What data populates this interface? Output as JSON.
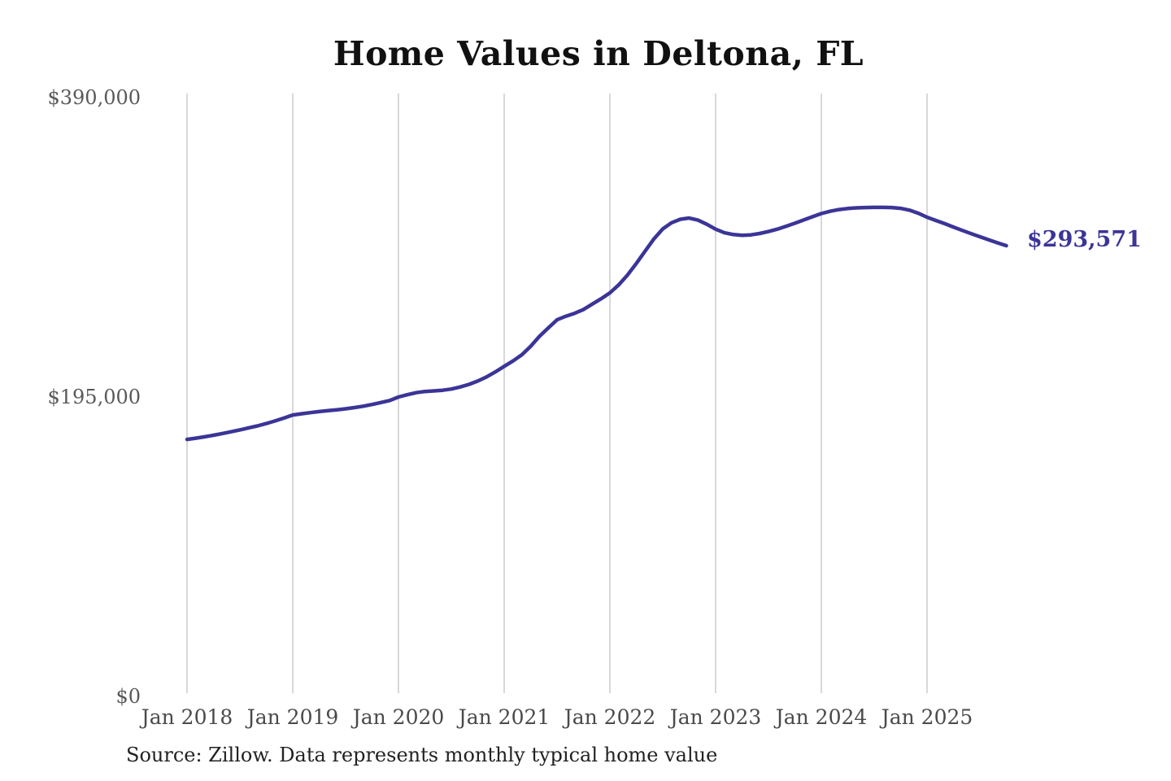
{
  "chart_data": {
    "type": "line",
    "title": "Home Values in Deltona, FL",
    "source_note": "Source: Zillow. Data represents monthly typical home value",
    "end_label": "$293,571",
    "end_value": 293571,
    "legend": "none",
    "grid": "vertical-only",
    "ylim": [
      0,
      390000
    ],
    "y_ticks": [
      {
        "label": "$390,000",
        "value": 390000
      },
      {
        "label": "$195,000",
        "value": 195000
      },
      {
        "label": "$0",
        "value": 0
      }
    ],
    "x_tick_labels": [
      "Jan 2018",
      "Jan 2019",
      "Jan 2020",
      "Jan 2021",
      "Jan 2022",
      "Jan 2023",
      "Jan 2024",
      "Jan 2025"
    ],
    "series": [
      {
        "name": "Monthly typical home value",
        "unit": "USD",
        "months": [
          "2018-01",
          "2018-02",
          "2018-03",
          "2018-04",
          "2018-05",
          "2018-06",
          "2018-07",
          "2018-08",
          "2018-09",
          "2018-10",
          "2018-11",
          "2018-12",
          "2019-01",
          "2019-02",
          "2019-03",
          "2019-04",
          "2019-05",
          "2019-06",
          "2019-07",
          "2019-08",
          "2019-09",
          "2019-10",
          "2019-11",
          "2019-12",
          "2020-01",
          "2020-02",
          "2020-03",
          "2020-04",
          "2020-05",
          "2020-06",
          "2020-07",
          "2020-08",
          "2020-09",
          "2020-10",
          "2020-11",
          "2020-12",
          "2021-01",
          "2021-02",
          "2021-03",
          "2021-04",
          "2021-05",
          "2021-06",
          "2021-07",
          "2021-08",
          "2021-09",
          "2021-10",
          "2021-11",
          "2021-12",
          "2022-01",
          "2022-02",
          "2022-03",
          "2022-04",
          "2022-05",
          "2022-06",
          "2022-07",
          "2022-08",
          "2022-09",
          "2022-10",
          "2022-11",
          "2022-12",
          "2023-01",
          "2023-02",
          "2023-03",
          "2023-04",
          "2023-05",
          "2023-06",
          "2023-07",
          "2023-08",
          "2023-09",
          "2023-10",
          "2023-11",
          "2023-12",
          "2024-01",
          "2024-02",
          "2024-03",
          "2024-04",
          "2024-05",
          "2024-06",
          "2024-07",
          "2024-08",
          "2024-09",
          "2024-10",
          "2024-11",
          "2024-12",
          "2025-01",
          "2025-02",
          "2025-03",
          "2025-04",
          "2025-05",
          "2025-06",
          "2025-07",
          "2025-08",
          "2025-09",
          "2025-10"
        ],
        "values": [
          167400,
          168200,
          169100,
          170100,
          171200,
          172400,
          173600,
          174900,
          176200,
          177700,
          179400,
          181300,
          183300,
          184100,
          184800,
          185500,
          186100,
          186700,
          187300,
          188100,
          189000,
          190100,
          191400,
          192700,
          195000,
          196500,
          197800,
          198600,
          199000,
          199400,
          200200,
          201500,
          203200,
          205400,
          208100,
          211400,
          215000,
          218500,
          222500,
          228000,
          234500,
          240000,
          245300,
          247600,
          249500,
          252000,
          255500,
          259000,
          262800,
          268000,
          274500,
          282000,
          290000,
          298000,
          304500,
          308500,
          310800,
          311600,
          310200,
          307500,
          304300,
          302000,
          300800,
          300300,
          300600,
          301500,
          302800,
          304300,
          306200,
          308200,
          310300,
          312400,
          314500,
          316000,
          317100,
          317800,
          318200,
          318400,
          318500,
          318500,
          318400,
          317900,
          316700,
          314700,
          312100,
          310000,
          307900,
          305700,
          303500,
          301400,
          299400,
          297400,
          295400,
          293571
        ]
      }
    ],
    "colors": {
      "line": "#3b3597",
      "grid": "#cccccc",
      "y_tick_text": "#595959",
      "x_tick_text": "#4a4a4a",
      "title_text": "#111111",
      "source_text": "#222222",
      "end_label_text": "#3b3597",
      "background": "#ffffff"
    }
  }
}
